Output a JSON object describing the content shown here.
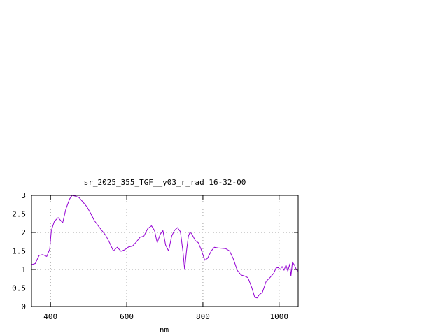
{
  "chart_data": {
    "type": "line",
    "title": "sr_2025_355_TGF__y03_r_rad 16-32-00",
    "xlabel": "nm",
    "ylabel": "",
    "xlim": [
      350,
      1050
    ],
    "ylim": [
      0,
      3
    ],
    "xticks": [
      400,
      600,
      800,
      1000
    ],
    "xtick_labels": [
      "400",
      "600",
      "800",
      "1000"
    ],
    "yticks": [
      0,
      0.5,
      1,
      1.5,
      2,
      2.5,
      3
    ],
    "ytick_labels": [
      "0",
      "0.5",
      "1",
      "1.5",
      "2",
      "2.5",
      "3"
    ],
    "grid": true,
    "legend": "none",
    "series": [
      {
        "color": "#9400d3",
        "x": [
          350,
          360,
          370,
          380,
          390,
          398,
          402,
          410,
          420,
          432,
          440,
          450,
          457,
          465,
          475,
          485,
          495,
          505,
          515,
          525,
          535,
          545,
          555,
          565,
          575,
          585,
          595,
          605,
          615,
          625,
          635,
          645,
          655,
          665,
          673,
          680,
          688,
          695,
          702,
          710,
          718,
          725,
          733,
          741,
          748,
          752,
          757,
          762,
          766,
          770,
          775,
          780,
          788,
          795,
          805,
          812,
          822,
          830,
          840,
          850,
          860,
          870,
          880,
          890,
          900,
          910,
          918,
          928,
          936,
          942,
          948,
          956,
          966,
          976,
          986,
          992,
          998,
          1003,
          1008,
          1013,
          1018,
          1023,
          1028,
          1031,
          1035,
          1040,
          1045,
          1050
        ],
        "y": [
          1.13,
          1.16,
          1.38,
          1.4,
          1.35,
          1.55,
          2.05,
          2.3,
          2.4,
          2.26,
          2.62,
          2.9,
          3.0,
          2.98,
          2.94,
          2.82,
          2.7,
          2.52,
          2.32,
          2.18,
          2.05,
          1.92,
          1.72,
          1.5,
          1.6,
          1.49,
          1.53,
          1.61,
          1.63,
          1.74,
          1.87,
          1.9,
          2.1,
          2.18,
          2.05,
          1.72,
          1.95,
          2.05,
          1.66,
          1.5,
          1.9,
          2.05,
          2.13,
          2.02,
          1.45,
          1.0,
          1.5,
          1.9,
          2.0,
          1.97,
          1.88,
          1.78,
          1.72,
          1.55,
          1.25,
          1.3,
          1.5,
          1.6,
          1.58,
          1.57,
          1.56,
          1.5,
          1.28,
          0.98,
          0.85,
          0.82,
          0.78,
          0.52,
          0.25,
          0.23,
          0.32,
          0.38,
          0.68,
          0.78,
          0.9,
          1.04,
          1.05,
          1.0,
          1.08,
          0.98,
          1.12,
          0.95,
          1.15,
          0.82,
          1.2,
          1.12,
          1.0,
          0.95
        ]
      }
    ]
  }
}
